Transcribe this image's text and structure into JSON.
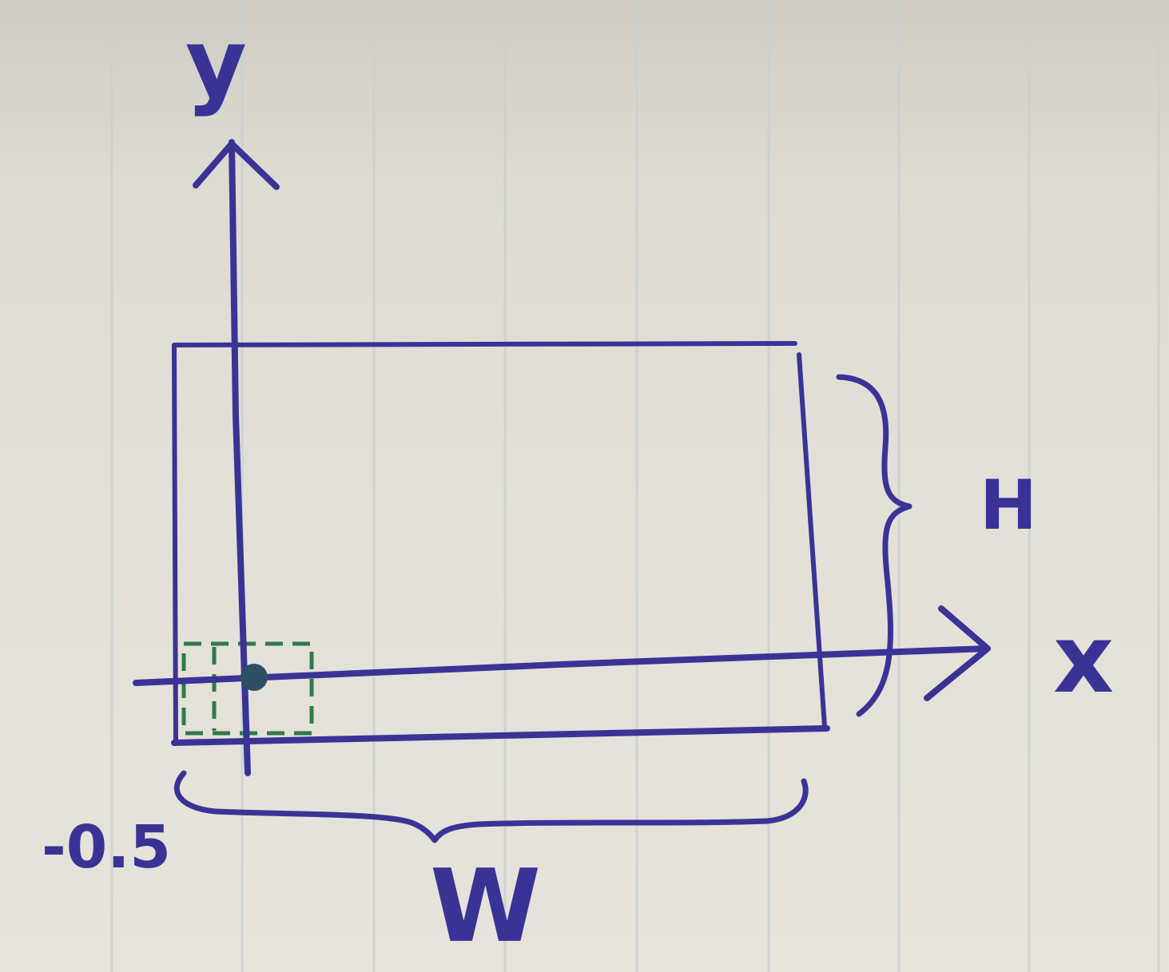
{
  "labels": {
    "y_axis": "y",
    "x_axis": "x",
    "height": "H",
    "width": "W",
    "origin_offset": "-0.5"
  },
  "colors": {
    "ink_blue": "#3a3396",
    "ink_green": "#2f7a4a",
    "paper": "#e3e0d8",
    "rule_lines": "#c9d3d6"
  }
}
